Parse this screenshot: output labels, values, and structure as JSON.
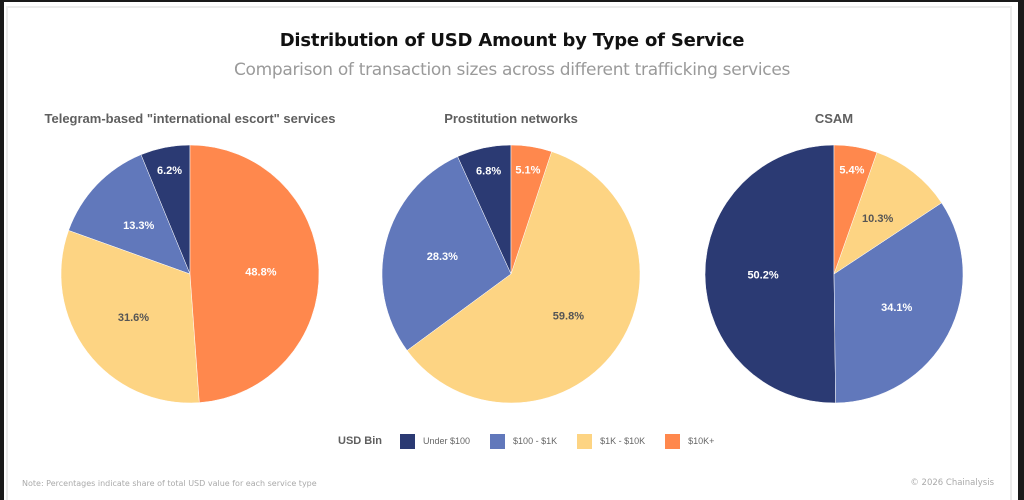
{
  "chart_data": {
    "type": "pie",
    "title": "Distribution of USD Amount by Type of Service",
    "subtitle": "Comparison of transaction sizes across different trafficking services",
    "legend": {
      "title": "USD Bin",
      "position": "bottom-center",
      "entries": [
        {
          "label": "Under $100",
          "color": "#2b3a73"
        },
        {
          "label": "$100 - $1K",
          "color": "#6178bb"
        },
        {
          "label": "$1K - $10K",
          "color": "#fdd483"
        },
        {
          "label": "$10K+",
          "color": "#ff884d"
        }
      ]
    },
    "categories": [
      "Under $100",
      "$100 - $1K",
      "$1K - $10K",
      "$10K+"
    ],
    "charts": [
      {
        "title": "Telegram-based \"international escort\" services",
        "values": [
          6.2,
          13.3,
          31.6,
          48.8
        ],
        "labels": [
          "6.2%",
          "13.3%",
          "31.6%",
          "48.8%"
        ]
      },
      {
        "title": "Prostitution networks",
        "values": [
          6.8,
          28.3,
          59.8,
          5.1
        ],
        "labels": [
          "6.8%",
          "28.3%",
          "59.8%",
          "5.1%"
        ]
      },
      {
        "title": "CSAM",
        "values": [
          50.2,
          34.1,
          10.3,
          5.4
        ],
        "labels": [
          "50.2%",
          "34.1%",
          "10.3%",
          "5.4%"
        ]
      }
    ],
    "label_colors": [
      "#ffffff",
      "#ffffff",
      "#555555",
      "#ffffff"
    ]
  },
  "footer": {
    "note": "Note: Percentages indicate share of total USD value for each service type",
    "copyright": "© 2026 Chainalysis"
  }
}
